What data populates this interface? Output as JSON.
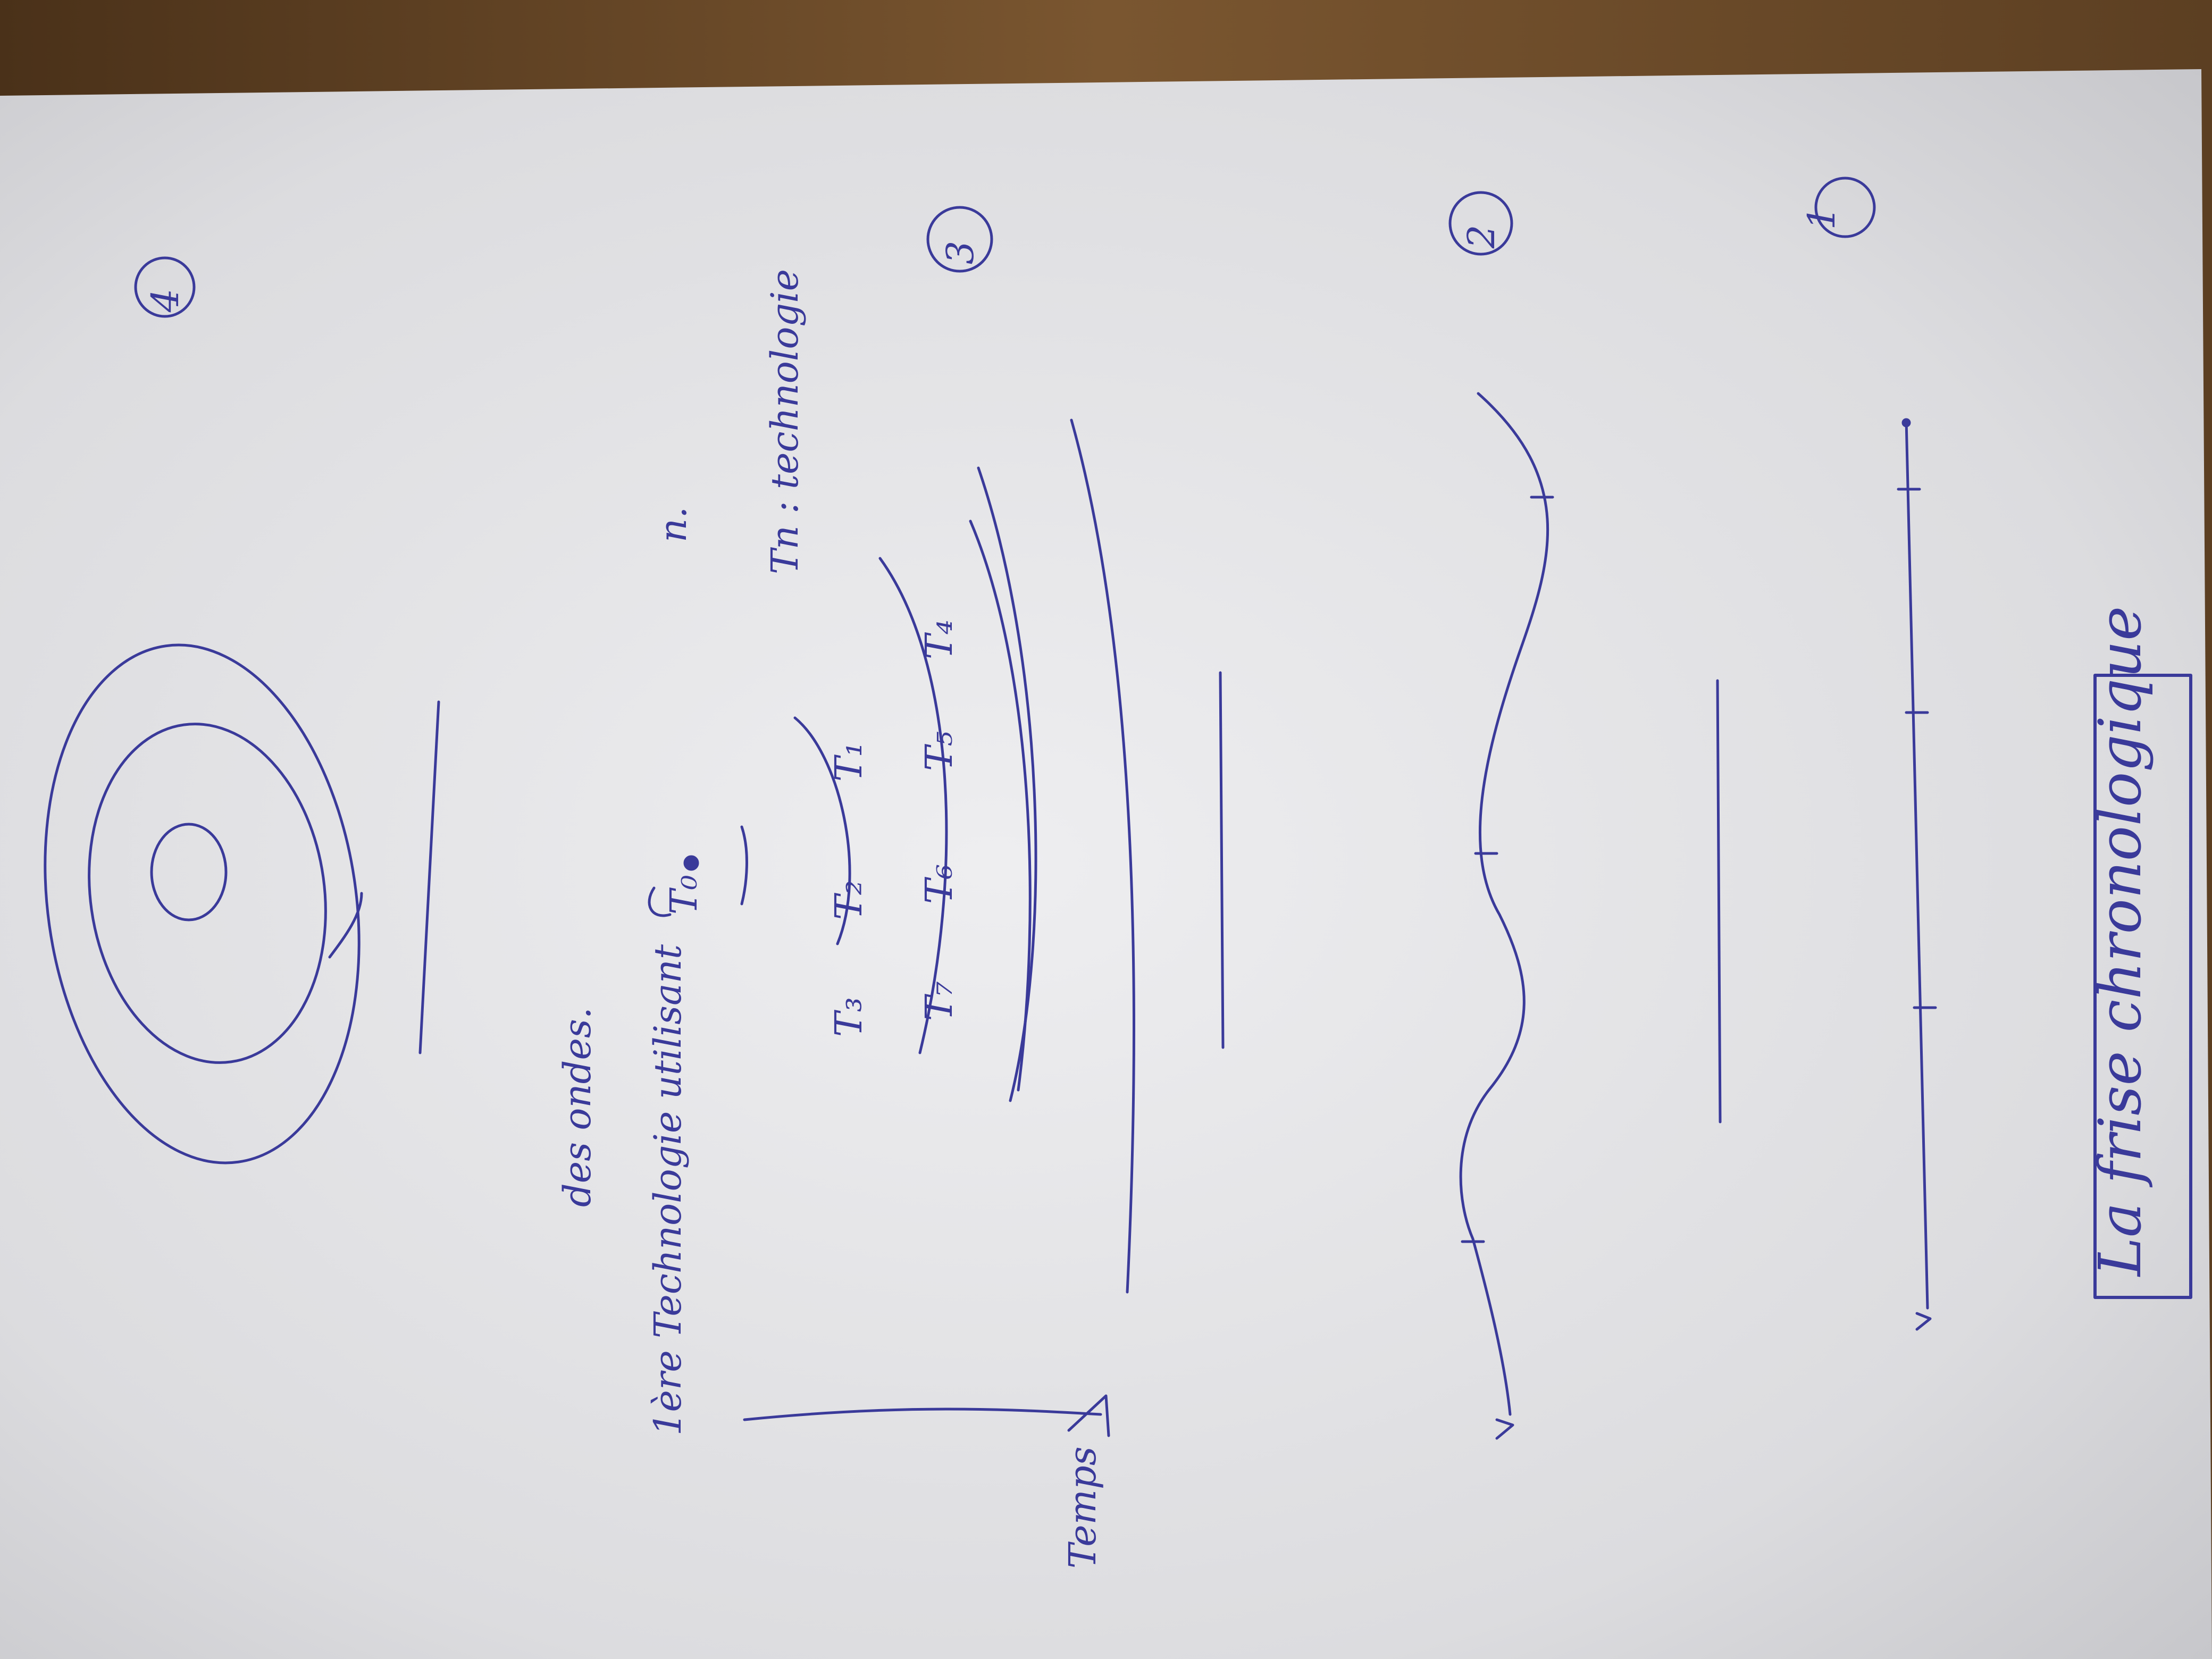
{
  "colors": {
    "table": "#6b4a2a",
    "paper": "#e4e4e6",
    "ink": "#3a3a9a"
  },
  "title": "La frise chronologique",
  "markers": [
    "1",
    "2",
    "3",
    "4"
  ],
  "labels": {
    "temps": "Temps",
    "t0": "T₀",
    "t1": "T₁",
    "t2": "T₂",
    "t3": "T₃",
    "t4": "T₄",
    "t5": "T₅",
    "t6": "T₆",
    "t7": "T₇",
    "note_line1": "1ère Technologie utilisant",
    "note_line2": "des ondes.",
    "legend_line1": "Tn : technologie",
    "legend_line2": "n."
  }
}
